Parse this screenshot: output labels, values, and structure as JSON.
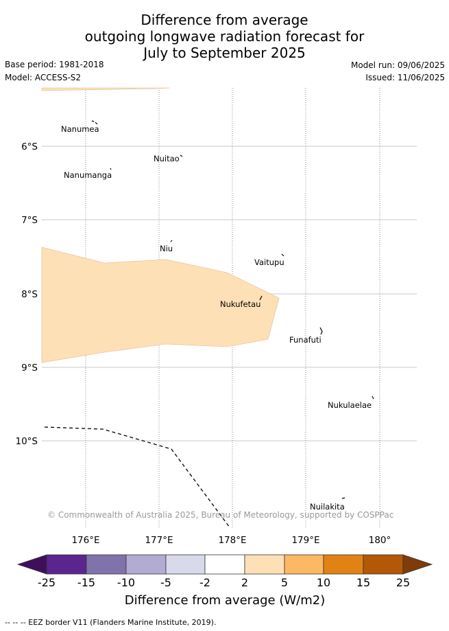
{
  "header": {
    "title_line1": "Difference from average",
    "title_line2": "outgoing longwave radiation forecast for",
    "title_line3": "July to September 2025",
    "base_period": "Base period: 1981-2018",
    "model": "Model: ACCESS-S2",
    "model_run": "Model run: 09/06/2025",
    "issued": "Issued: 11/06/2025"
  },
  "map": {
    "lat_ticks": [
      "6°S",
      "7°S",
      "8°S",
      "9°S",
      "10°S"
    ],
    "lon_ticks": [
      "176°E",
      "177°E",
      "178°E",
      "179°E",
      "180°"
    ],
    "places": [
      {
        "name": "Nanumea"
      },
      {
        "name": "Nuitao"
      },
      {
        "name": "Nanumanga"
      },
      {
        "name": "Niu"
      },
      {
        "name": "Vaitupu"
      },
      {
        "name": "Nukufetau"
      },
      {
        "name": "Funafuti"
      },
      {
        "name": "Nukulaelae"
      },
      {
        "name": "Nuilakita"
      }
    ],
    "credit": "© Commonwealth of Australia 2025, Bureau of Meteorology, supported by COSPPac",
    "anomaly_fill_color": "#fde0b6"
  },
  "colorbar": {
    "ticks": [
      "-25",
      "-15",
      "-10",
      "-5",
      "-2",
      "2",
      "5",
      "10",
      "15",
      "25"
    ],
    "colors": [
      "#3f0f5c",
      "#5b2590",
      "#8073ac",
      "#b2abd2",
      "#d8daeb",
      "#ffffff",
      "#fee0b6",
      "#fdb863",
      "#e08214",
      "#b35806",
      "#7f3b08"
    ],
    "label": "Difference from average (W/m2)"
  },
  "footer": {
    "legend": "--  --  -- EEZ border V11 (Flanders Marine Institute, 2019)."
  }
}
